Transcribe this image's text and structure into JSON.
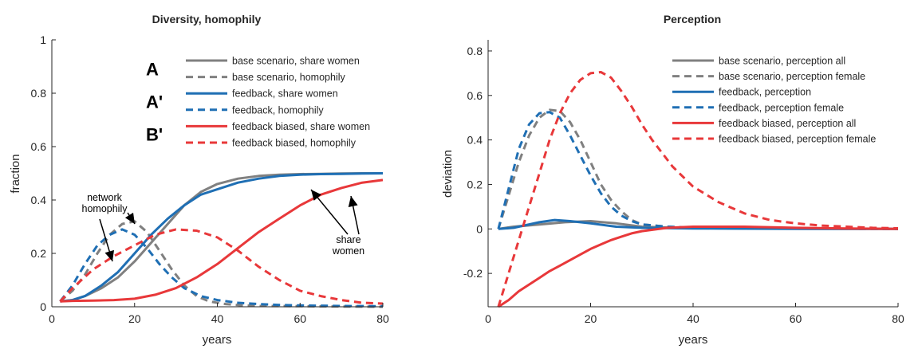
{
  "chart_data": [
    {
      "type": "line",
      "title": "Diversity, homophily",
      "xlabel": "years",
      "ylabel": "fraction",
      "xlim": [
        0,
        80
      ],
      "ylim": [
        0,
        1
      ],
      "xticks": [
        "0",
        "20",
        "40",
        "60",
        "80"
      ],
      "yticks": [
        "0",
        "0.2",
        "0.4",
        "0.6",
        "0.8",
        "1"
      ],
      "legend_position": "top-right",
      "scenario_markers": [
        "A",
        "A'",
        "B'"
      ],
      "annotations": [
        {
          "text": "network\nhomophily",
          "lines": [
            "network",
            "homophily"
          ]
        },
        {
          "text": "share\nwomen",
          "lines": [
            "share",
            "women"
          ]
        }
      ],
      "series": [
        {
          "name": "base scenario, share women",
          "color": "#808080",
          "dash": "solid",
          "x": [
            2,
            5,
            8,
            12,
            16,
            20,
            24,
            28,
            32,
            36,
            40,
            45,
            50,
            55,
            60,
            65,
            70,
            75,
            80
          ],
          "y": [
            0.02,
            0.025,
            0.04,
            0.07,
            0.11,
            0.17,
            0.24,
            0.31,
            0.38,
            0.43,
            0.46,
            0.48,
            0.49,
            0.495,
            0.497,
            0.498,
            0.499,
            0.5,
            0.5
          ]
        },
        {
          "name": "base scenario, homophily",
          "color": "#808080",
          "dash": "dashed",
          "x": [
            2,
            5,
            8,
            11,
            14,
            17,
            20,
            23,
            26,
            29,
            32,
            35,
            38,
            42,
            46,
            50,
            60,
            70,
            80
          ],
          "y": [
            0.02,
            0.06,
            0.12,
            0.2,
            0.27,
            0.31,
            0.32,
            0.28,
            0.21,
            0.14,
            0.08,
            0.04,
            0.02,
            0.01,
            0.005,
            0.003,
            0.002,
            0.001,
            0.0
          ]
        },
        {
          "name": "feedback, share women",
          "color": "#1f6fb4",
          "dash": "solid",
          "x": [
            2,
            5,
            8,
            12,
            16,
            20,
            24,
            28,
            32,
            36,
            40,
            45,
            50,
            55,
            60,
            65,
            70,
            75,
            80
          ],
          "y": [
            0.02,
            0.025,
            0.04,
            0.08,
            0.13,
            0.2,
            0.27,
            0.33,
            0.38,
            0.42,
            0.44,
            0.465,
            0.48,
            0.49,
            0.495,
            0.497,
            0.498,
            0.499,
            0.5
          ]
        },
        {
          "name": "feedback, homophily",
          "color": "#1f6fb4",
          "dash": "dashed",
          "x": [
            2,
            5,
            8,
            11,
            14,
            17,
            20,
            23,
            26,
            29,
            32,
            36,
            40,
            45,
            50,
            55,
            60,
            70,
            80
          ],
          "y": [
            0.02,
            0.08,
            0.16,
            0.23,
            0.27,
            0.29,
            0.27,
            0.22,
            0.16,
            0.11,
            0.07,
            0.04,
            0.025,
            0.015,
            0.01,
            0.007,
            0.005,
            0.003,
            0.002
          ]
        },
        {
          "name": "feedback biased, share women",
          "color": "#e8383a",
          "dash": "solid",
          "x": [
            2,
            5,
            10,
            15,
            20,
            25,
            30,
            35,
            40,
            45,
            50,
            55,
            60,
            65,
            70,
            75,
            80
          ],
          "y": [
            0.02,
            0.022,
            0.023,
            0.025,
            0.03,
            0.045,
            0.07,
            0.11,
            0.16,
            0.22,
            0.28,
            0.33,
            0.38,
            0.42,
            0.445,
            0.465,
            0.475
          ]
        },
        {
          "name": "feedback biased, homophily",
          "color": "#e8383a",
          "dash": "dashed",
          "x": [
            2,
            5,
            10,
            15,
            20,
            25,
            30,
            35,
            40,
            45,
            50,
            55,
            60,
            65,
            70,
            75,
            80
          ],
          "y": [
            0.02,
            0.07,
            0.14,
            0.19,
            0.23,
            0.27,
            0.29,
            0.285,
            0.26,
            0.21,
            0.15,
            0.1,
            0.06,
            0.04,
            0.025,
            0.015,
            0.012
          ]
        }
      ]
    },
    {
      "type": "line",
      "title": "Perception",
      "xlabel": "years",
      "ylabel": "deviation",
      "xlim": [
        0,
        80
      ],
      "ylim": [
        -0.35,
        0.85
      ],
      "xticks": [
        "0",
        "20",
        "40",
        "60",
        "80"
      ],
      "yticks": [
        "-0.2",
        "0",
        "0.2",
        "0.4",
        "0.6",
        "0.8"
      ],
      "legend_position": "top-right",
      "series": [
        {
          "name": "base scenario, perception all",
          "color": "#808080",
          "dash": "solid",
          "x": [
            2,
            5,
            10,
            15,
            20,
            25,
            30,
            40,
            50,
            60,
            70,
            80
          ],
          "y": [
            0.0,
            0.01,
            0.02,
            0.03,
            0.035,
            0.025,
            0.01,
            0.003,
            0.002,
            0.001,
            0.0,
            0.0
          ]
        },
        {
          "name": "base scenario, perception female",
          "color": "#808080",
          "dash": "dashed",
          "x": [
            2,
            4,
            6,
            8,
            10,
            12,
            14,
            16,
            18,
            20,
            22,
            24,
            26,
            28,
            30,
            35,
            40,
            50,
            60,
            70,
            80
          ],
          "y": [
            0.0,
            0.15,
            0.3,
            0.42,
            0.5,
            0.535,
            0.53,
            0.48,
            0.4,
            0.3,
            0.2,
            0.13,
            0.08,
            0.04,
            0.02,
            0.01,
            0.005,
            0.003,
            0.002,
            0.001,
            0.0
          ]
        },
        {
          "name": "feedback, perception",
          "color": "#1f6fb4",
          "dash": "solid",
          "x": [
            2,
            5,
            10,
            13,
            16,
            20,
            25,
            30,
            40,
            50,
            60,
            70,
            80
          ],
          "y": [
            0.0,
            0.005,
            0.03,
            0.04,
            0.035,
            0.025,
            0.01,
            0.005,
            0.002,
            0.001,
            0.0,
            0.0,
            0.0
          ]
        },
        {
          "name": "feedback, perception female",
          "color": "#1f6fb4",
          "dash": "dashed",
          "x": [
            2,
            4,
            6,
            8,
            10,
            12,
            14,
            16,
            18,
            20,
            22,
            24,
            26,
            28,
            30,
            35,
            40,
            50,
            60,
            70,
            80
          ],
          "y": [
            0.0,
            0.18,
            0.36,
            0.47,
            0.52,
            0.525,
            0.5,
            0.42,
            0.33,
            0.24,
            0.16,
            0.1,
            0.06,
            0.035,
            0.02,
            0.01,
            0.005,
            0.003,
            0.002,
            0.001,
            0.0
          ]
        },
        {
          "name": "feedback biased, perception all",
          "color": "#e8383a",
          "dash": "solid",
          "x": [
            2,
            4,
            6,
            8,
            10,
            12,
            14,
            16,
            18,
            20,
            22,
            24,
            26,
            28,
            30,
            35,
            40,
            50,
            60,
            70,
            80
          ],
          "y": [
            -0.35,
            -0.32,
            -0.28,
            -0.25,
            -0.22,
            -0.19,
            -0.165,
            -0.14,
            -0.115,
            -0.09,
            -0.07,
            -0.05,
            -0.035,
            -0.02,
            -0.01,
            0.005,
            0.01,
            0.01,
            0.005,
            0.002,
            0.0
          ]
        },
        {
          "name": "feedback biased, perception female",
          "color": "#e8383a",
          "dash": "dashed",
          "x": [
            2,
            4,
            6,
            8,
            10,
            12,
            14,
            16,
            18,
            20,
            22,
            24,
            26,
            28,
            30,
            32,
            34,
            36,
            40,
            45,
            50,
            55,
            60,
            65,
            70,
            75,
            80
          ],
          "y": [
            -0.35,
            -0.2,
            -0.05,
            0.1,
            0.25,
            0.4,
            0.52,
            0.61,
            0.67,
            0.7,
            0.705,
            0.68,
            0.62,
            0.55,
            0.47,
            0.4,
            0.34,
            0.28,
            0.19,
            0.12,
            0.07,
            0.04,
            0.025,
            0.015,
            0.01,
            0.005,
            0.003
          ]
        }
      ]
    }
  ]
}
